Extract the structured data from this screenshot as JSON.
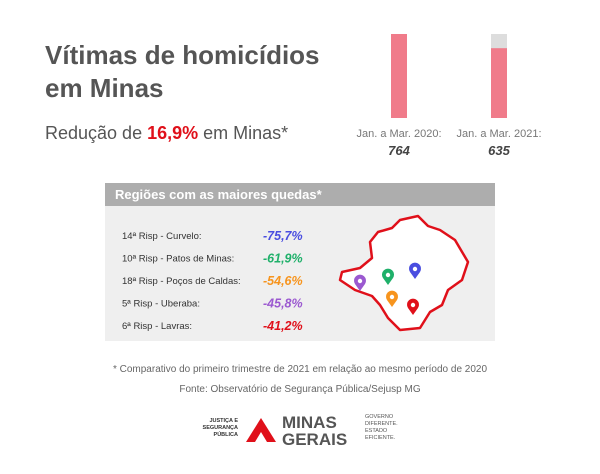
{
  "header": {
    "title_lines": [
      "Vítimas de homicídios",
      "em Minas"
    ],
    "subtitle": {
      "before": "Redução de ",
      "highlight": "16,9%",
      "after": " em Minas*"
    }
  },
  "bars": [
    {
      "label": "Jan. a Mar. 2020:",
      "value": 764
    },
    {
      "label": "Jan. a Mar. 2021:",
      "value": 635
    }
  ],
  "regions": {
    "title": "Regiões com as maiores quedas*",
    "rows": [
      [
        "14ª Risp - Curvelo:",
        "-75,7%"
      ],
      [
        "10ª Risp - Patos de Minas:",
        "-61,9%"
      ],
      [
        "18ª Risp - Poços de Caldas:",
        "-54,6%"
      ],
      [
        "5ª Risp - Uberaba:",
        "-45,8%"
      ],
      [
        "6ª Risp - Lavras:",
        "-41,2%"
      ]
    ]
  },
  "footnote": "* Comparativo do primeiro trimestre de 2021 em relação ao mesmo período de 2020",
  "source": "Fonte: Observatório de Segurança Pública/Sejusp MG",
  "logo": {
    "left_lines": [
      "JUSTIÇA E",
      "SEGURANÇA",
      "PÚBLICA"
    ],
    "brand_lines": [
      "MINAS",
      "GERAIS"
    ],
    "right_lines": [
      "GOVERNO",
      "DIFERENTE.",
      "ESTADO",
      "EFICIENTE."
    ]
  }
}
